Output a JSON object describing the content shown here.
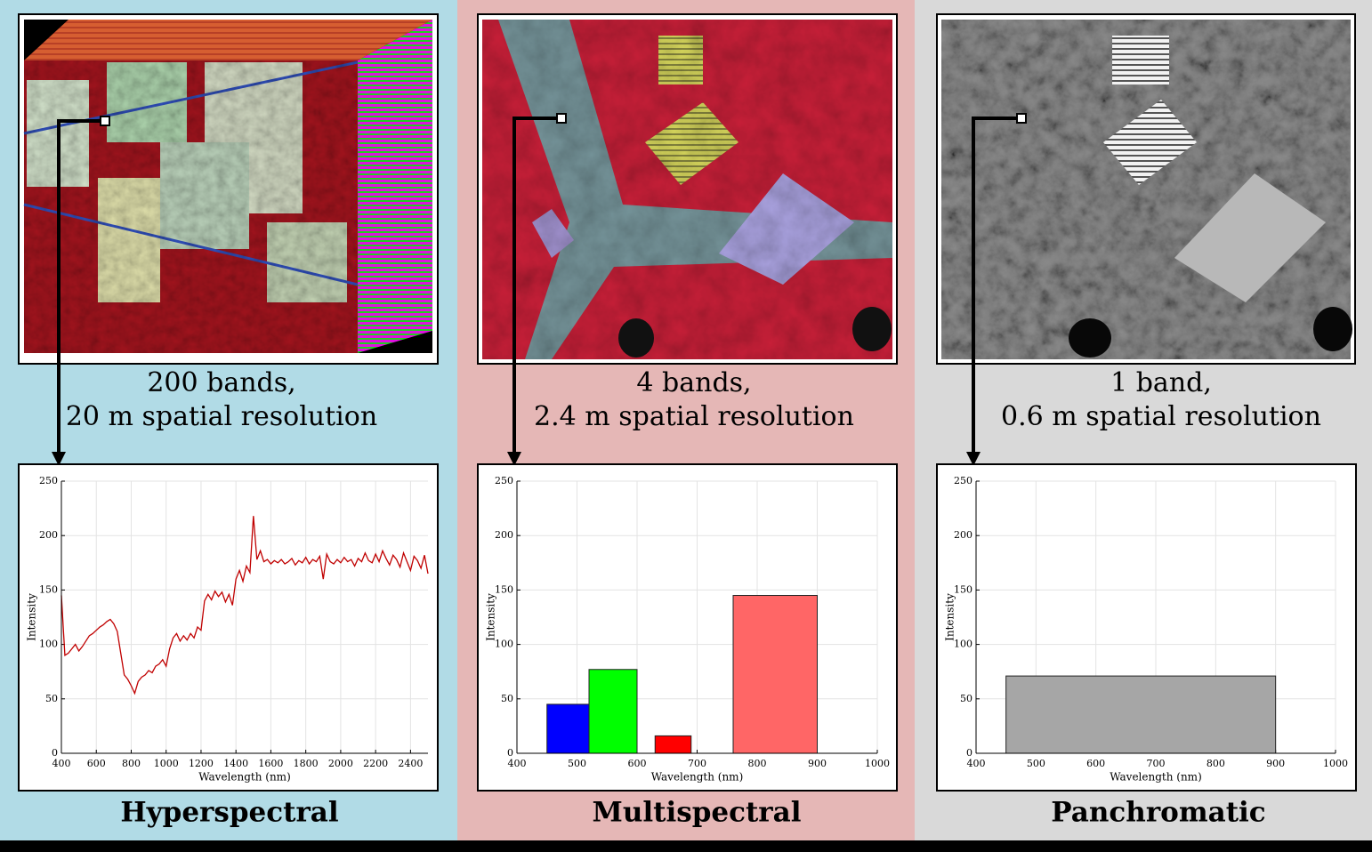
{
  "chart_data": [
    {
      "type": "line",
      "title": "Hyperspectral",
      "caption": [
        "200 bands,",
        "20 m spatial  resolution"
      ],
      "xlabel": "Wavelength (nm)",
      "ylabel": "Intensity",
      "color": "#c00000",
      "grid": true,
      "xlim": [
        400,
        2500
      ],
      "xticks": [
        400,
        600,
        800,
        1000,
        1200,
        1400,
        1600,
        1800,
        2000,
        2200,
        2400
      ],
      "ylim": [
        0,
        250
      ],
      "yticks": [
        0,
        50,
        100,
        150,
        200,
        250
      ],
      "x": [
        400,
        420,
        440,
        460,
        480,
        500,
        520,
        540,
        560,
        580,
        600,
        620,
        640,
        660,
        680,
        700,
        720,
        740,
        760,
        780,
        800,
        820,
        840,
        860,
        880,
        900,
        920,
        940,
        960,
        980,
        1000,
        1020,
        1040,
        1060,
        1080,
        1100,
        1120,
        1140,
        1160,
        1180,
        1200,
        1220,
        1240,
        1260,
        1280,
        1300,
        1320,
        1340,
        1360,
        1380,
        1400,
        1420,
        1440,
        1460,
        1480,
        1500,
        1520,
        1540,
        1560,
        1580,
        1600,
        1620,
        1640,
        1660,
        1680,
        1700,
        1720,
        1740,
        1760,
        1780,
        1800,
        1820,
        1840,
        1860,
        1880,
        1900,
        1920,
        1940,
        1960,
        1980,
        2000,
        2020,
        2040,
        2060,
        2080,
        2100,
        2120,
        2140,
        2160,
        2180,
        2200,
        2220,
        2240,
        2260,
        2280,
        2300,
        2320,
        2340,
        2360,
        2380,
        2400,
        2420,
        2440,
        2460,
        2480,
        2500
      ],
      "values": [
        145,
        90,
        92,
        96,
        100,
        94,
        98,
        103,
        108,
        110,
        113,
        116,
        118,
        121,
        123,
        119,
        112,
        92,
        72,
        68,
        62,
        55,
        66,
        70,
        72,
        76,
        74,
        80,
        82,
        86,
        80,
        96,
        106,
        110,
        103,
        108,
        104,
        110,
        106,
        116,
        113,
        140,
        146,
        141,
        149,
        144,
        148,
        139,
        146,
        136,
        160,
        168,
        158,
        172,
        166,
        218,
        178,
        186,
        176,
        178,
        174,
        177,
        175,
        178,
        174,
        176,
        179,
        173,
        177,
        175,
        180,
        174,
        178,
        176,
        181,
        160,
        183,
        176,
        174,
        178,
        175,
        180,
        176,
        178,
        172,
        179,
        176,
        184,
        177,
        175,
        183,
        176,
        186,
        179,
        173,
        182,
        178,
        171,
        184,
        176,
        168,
        181,
        177,
        170,
        182,
        165
      ]
    },
    {
      "type": "bar",
      "title": "Multispectral",
      "caption": [
        "4 bands,",
        "2.4 m spatial  resolution"
      ],
      "xlabel": "Wavelength (nm)",
      "ylabel": "Intensity",
      "grid": true,
      "xlim": [
        400,
        1000
      ],
      "xticks": [
        400,
        500,
        600,
        700,
        800,
        900,
        1000
      ],
      "ylim": [
        0,
        250
      ],
      "yticks": [
        0,
        50,
        100,
        150,
        200,
        250
      ],
      "ranges": [
        [
          450,
          520
        ],
        [
          520,
          600
        ],
        [
          630,
          690
        ],
        [
          760,
          900
        ]
      ],
      "values": [
        45,
        77,
        16,
        145
      ],
      "colors": [
        "#0000ff",
        "#00ff00",
        "#ff0000",
        "#ff6666"
      ]
    },
    {
      "type": "bar",
      "title": "Panchromatic",
      "caption": [
        "1 band,",
        "0.6 m spatial  resolution"
      ],
      "xlabel": "Wavelength (nm)",
      "ylabel": "Intensity",
      "grid": true,
      "xlim": [
        400,
        1000
      ],
      "xticks": [
        400,
        500,
        600,
        700,
        800,
        900,
        1000
      ],
      "ylim": [
        0,
        250
      ],
      "yticks": [
        0,
        50,
        100,
        150,
        200,
        250
      ],
      "ranges": [
        [
          450,
          900
        ]
      ],
      "values": [
        71
      ],
      "colors": [
        "#a6a6a6"
      ]
    }
  ]
}
